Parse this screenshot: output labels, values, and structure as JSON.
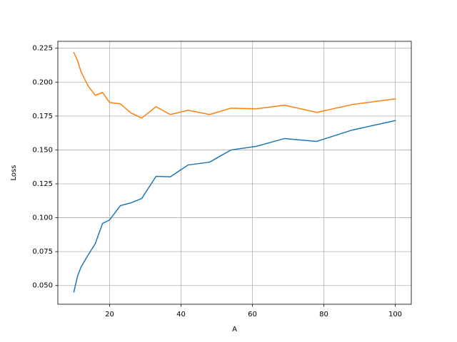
{
  "chart_data": {
    "type": "line",
    "xlabel": "A",
    "ylabel": "Loss",
    "x": [
      10,
      11,
      12,
      14,
      16,
      18,
      20,
      23,
      26,
      29,
      33,
      37,
      42,
      48,
      54,
      61,
      69,
      78,
      88,
      100
    ],
    "series": [
      {
        "color": "#1f77b4",
        "values": [
          0.0453,
          0.0568,
          0.0637,
          0.0726,
          0.081,
          0.0957,
          0.0984,
          0.1089,
          0.111,
          0.1142,
          0.1305,
          0.1302,
          0.1389,
          0.141,
          0.15,
          0.1526,
          0.1584,
          0.1563,
          0.1647,
          0.1716
        ]
      },
      {
        "color": "#ff7f0e",
        "values": [
          0.2218,
          0.216,
          0.2076,
          0.1971,
          0.1903,
          0.1924,
          0.185,
          0.184,
          0.1772,
          0.1735,
          0.1819,
          0.1761,
          0.1793,
          0.1761,
          0.1808,
          0.1803,
          0.183,
          0.1777,
          0.1835,
          0.1877
        ]
      }
    ],
    "xlim": [
      5.5,
      104.5
    ],
    "ylim": [
      0.0362,
      0.2301
    ],
    "xticks": [
      20,
      40,
      60,
      80,
      100
    ],
    "yticks": [
      {
        "value": 0.05,
        "label": "0.050"
      },
      {
        "value": 0.075,
        "label": "0.075"
      },
      {
        "value": 0.1,
        "label": "0.100"
      },
      {
        "value": 0.125,
        "label": "0.125"
      },
      {
        "value": 0.15,
        "label": "0.150"
      },
      {
        "value": 0.175,
        "label": "0.175"
      },
      {
        "value": 0.2,
        "label": "0.200"
      },
      {
        "value": 0.225,
        "label": "0.225"
      }
    ],
    "grid": true
  }
}
